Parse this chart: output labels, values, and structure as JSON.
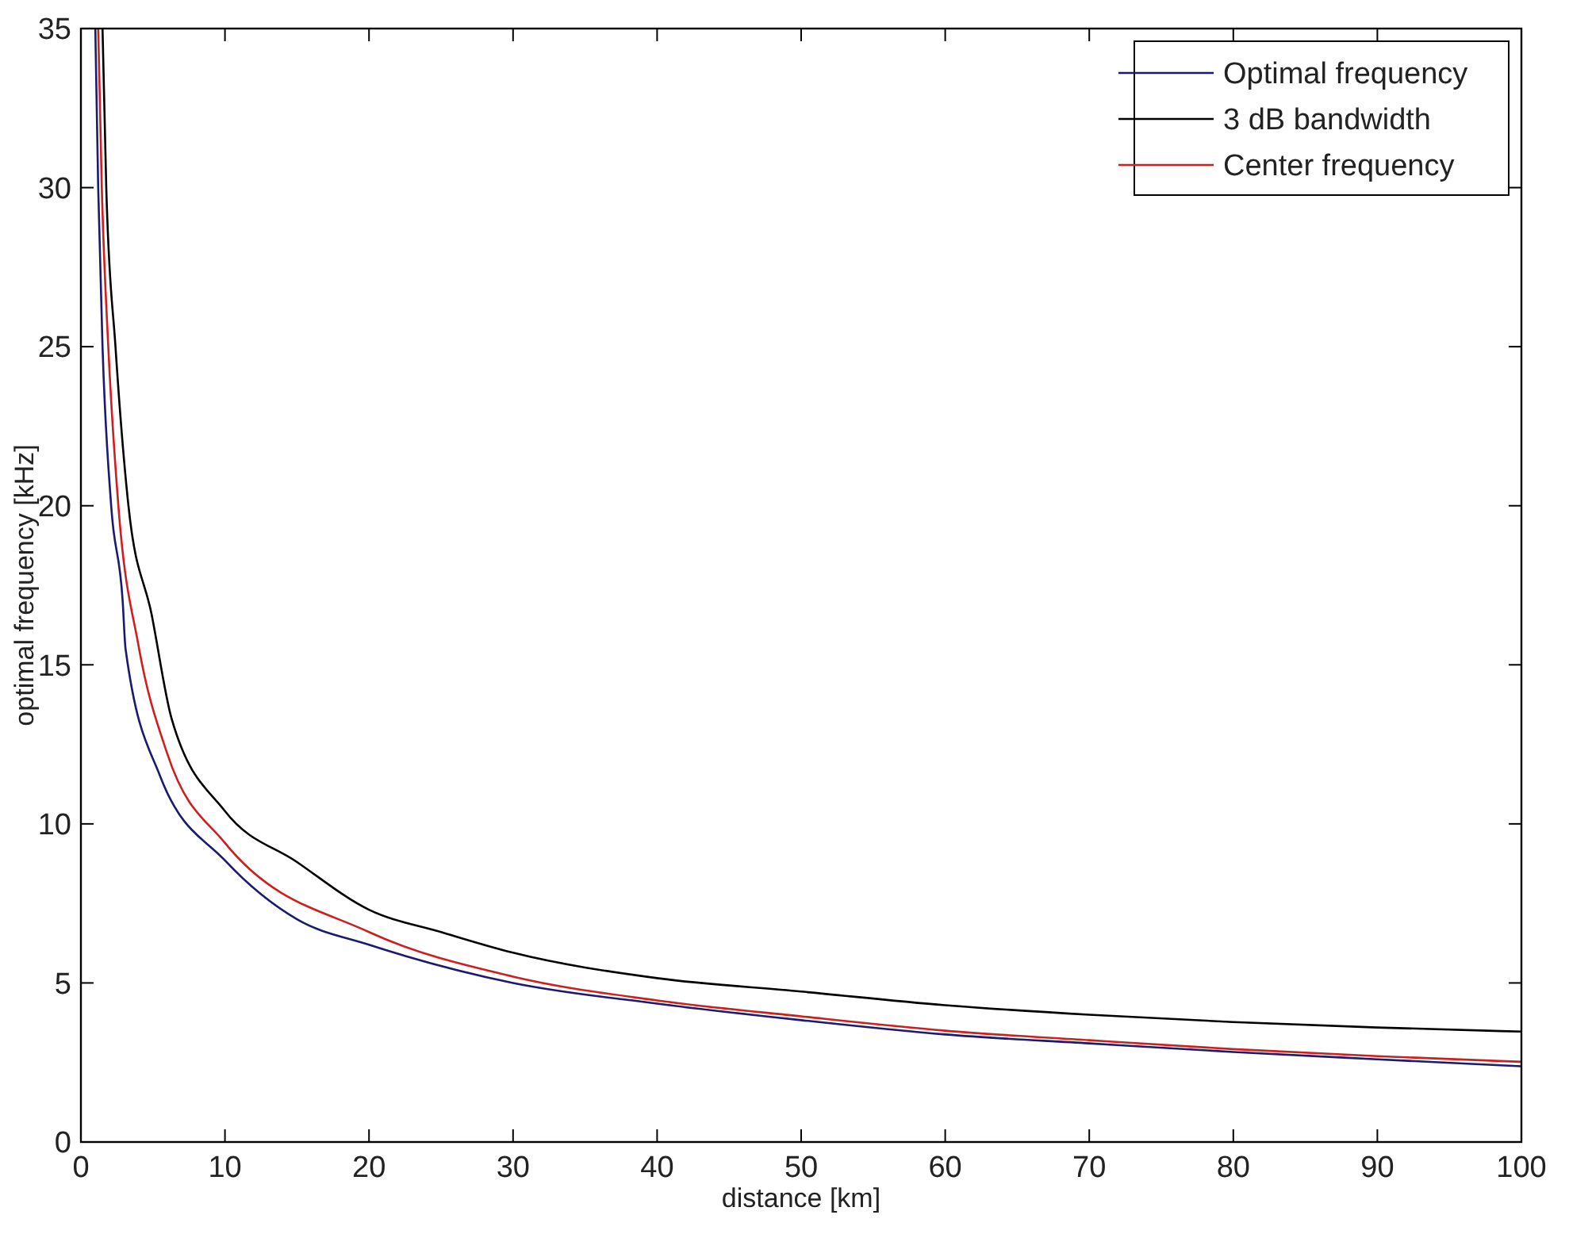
{
  "chart_data": {
    "type": "line",
    "xlabel": "distance [km]",
    "ylabel": "optimal frequency [kHz]",
    "xlim": [
      0,
      100
    ],
    "ylim": [
      0,
      35
    ],
    "xticks": [
      0,
      10,
      20,
      30,
      40,
      50,
      60,
      70,
      80,
      90,
      100
    ],
    "yticks": [
      0,
      5,
      10,
      15,
      20,
      25,
      30,
      35
    ],
    "grid": false,
    "legend": "top right",
    "marker": "none",
    "line_style": "solid",
    "series": [
      {
        "name": "Optimal frequency",
        "color": "#1a1a6e",
        "x": [
          1.0,
          1.2,
          1.5,
          2.1,
          2.9,
          3.1,
          5.5,
          10,
          15,
          20,
          30,
          40,
          50,
          60,
          70,
          80,
          90,
          100
        ],
        "values": [
          35,
          30,
          25,
          20,
          17,
          15.5,
          11.5,
          8.85,
          7.0,
          6.2,
          5.0,
          4.35,
          3.83,
          3.38,
          3.1,
          2.83,
          2.6,
          2.38
        ]
      },
      {
        "name": "3 dB bandwidth",
        "color": "#000000",
        "x": [
          1.5,
          1.76,
          2.4,
          3.3,
          4.9,
          6.3,
          10,
          15,
          20,
          25,
          30,
          40,
          50,
          60,
          70,
          80,
          90,
          100
        ],
        "values": [
          35,
          30,
          25,
          20,
          16.6,
          13.3,
          10.4,
          8.8,
          7.3,
          6.6,
          5.95,
          5.15,
          4.73,
          4.3,
          4.0,
          3.77,
          3.6,
          3.47
        ]
      },
      {
        "name": "Center frequency",
        "color": "#cc2020",
        "x": [
          1.2,
          1.45,
          1.9,
          2.6,
          4,
          6,
          10,
          20,
          30,
          40,
          50,
          60,
          70,
          80,
          90,
          100
        ],
        "values": [
          35,
          30,
          25,
          20,
          15.6,
          12.2,
          9.4,
          6.6,
          5.2,
          4.45,
          3.95,
          3.5,
          3.2,
          2.92,
          2.7,
          2.52
        ]
      }
    ]
  }
}
